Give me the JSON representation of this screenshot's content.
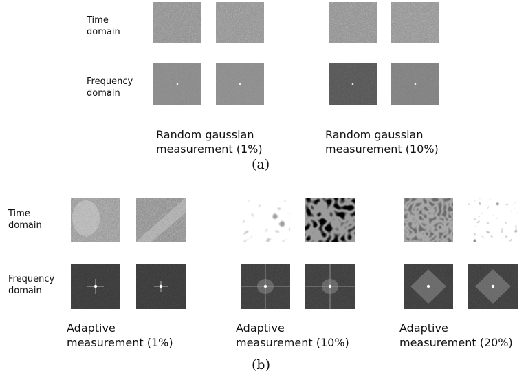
{
  "panel_a": {
    "row_labels": {
      "time": [
        "Time",
        "domain"
      ],
      "frequency": [
        "Frequency",
        "domain"
      ]
    },
    "groups": [
      {
        "caption": [
          "Random gaussian",
          "measurement (1%)"
        ]
      },
      {
        "caption": [
          "Random gaussian",
          "measurement (10%)"
        ]
      }
    ],
    "sublabel": "(a)"
  },
  "panel_b": {
    "row_labels": {
      "time": [
        "Time",
        "domain"
      ],
      "frequency": [
        "Frequency",
        "domain"
      ]
    },
    "groups": [
      {
        "caption": [
          "Adaptive",
          "measurement (1%)"
        ]
      },
      {
        "caption": [
          "Adaptive",
          "measurement (10%)"
        ]
      },
      {
        "caption": [
          "Adaptive",
          "measurement (20%)"
        ]
      }
    ],
    "sublabel": "(b)"
  }
}
